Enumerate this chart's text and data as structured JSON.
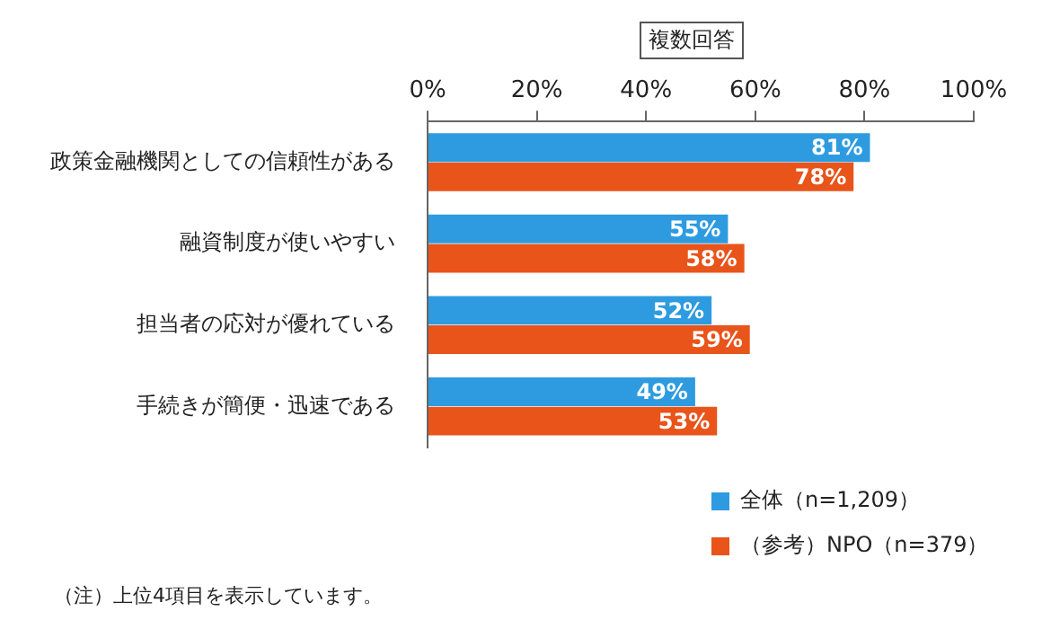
{
  "chart_data": {
    "type": "bar",
    "orientation": "horizontal",
    "subtitle": "複数回答",
    "categories": [
      "政策金融機関としての信頼性がある",
      "融資制度が使いやすい",
      "担当者の応対が優れている",
      "手続きが簡便・迅速である"
    ],
    "series": [
      {
        "name": "全体（n=1,209）",
        "color": "#2e9be0",
        "values": [
          81,
          55,
          52,
          49
        ],
        "value_labels": [
          "81%",
          "55%",
          "52%",
          "49%"
        ]
      },
      {
        "name": "（参考）NPO（n=379）",
        "color": "#e8541a",
        "values": [
          78,
          58,
          59,
          53
        ],
        "value_labels": [
          "78%",
          "58%",
          "59%",
          "53%"
        ]
      }
    ],
    "xlim": [
      0,
      100
    ],
    "xticks": [
      {
        "value": 0,
        "label": "0%"
      },
      {
        "value": 20,
        "label": "20%"
      },
      {
        "value": 40,
        "label": "40%"
      },
      {
        "value": 60,
        "label": "60%"
      },
      {
        "value": 80,
        "label": "80%"
      },
      {
        "value": 100,
        "label": "100%"
      }
    ],
    "grid": false,
    "legend": "bottom right",
    "annotations": [
      "（注）上位4項目を表示しています。"
    ]
  }
}
